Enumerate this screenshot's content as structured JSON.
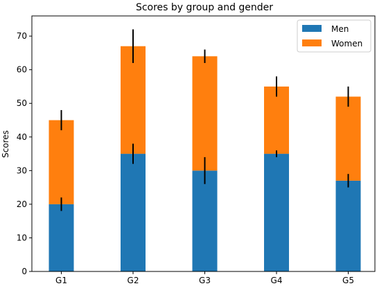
{
  "chart_data": {
    "type": "bar",
    "stacked": true,
    "title": "Scores by group and gender",
    "xlabel": "",
    "ylabel": "Scores",
    "categories": [
      "G1",
      "G2",
      "G3",
      "G4",
      "G5"
    ],
    "ylim": [
      0,
      76
    ],
    "yticks": [
      0,
      10,
      20,
      30,
      40,
      50,
      60,
      70
    ],
    "series": [
      {
        "name": "Men",
        "values": [
          20,
          35,
          30,
          35,
          27
        ],
        "errors": [
          2,
          3,
          4,
          1,
          2
        ],
        "color": "#1f77b4"
      },
      {
        "name": "Women",
        "values": [
          25,
          32,
          34,
          20,
          25
        ],
        "errors": [
          3,
          5,
          2,
          3,
          3
        ],
        "color": "#ff7f0e"
      }
    ],
    "legend_position": "top-right",
    "grid": false
  }
}
